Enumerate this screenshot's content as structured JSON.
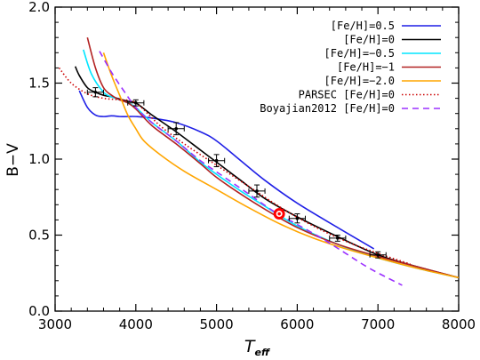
{
  "chart_data": {
    "type": "line",
    "xlabel": {
      "main": "T",
      "sub": "eff"
    },
    "ylabel": "B−V",
    "xlim": [
      3000,
      8000
    ],
    "ylim": [
      0.0,
      2.0
    ],
    "x_ticks": [
      "3000",
      "4000",
      "5000",
      "6000",
      "7000",
      "8000"
    ],
    "y_ticks": [
      "0.0",
      "0.5",
      "1.0",
      "1.5",
      "2.0"
    ],
    "legend_position": "top-right",
    "series": [
      {
        "name": "[Fe/H]=0.5",
        "color": "#1f1fe6",
        "dash": "solid",
        "x": [
          3300,
          3400,
          3500,
          3600,
          3700,
          3800,
          3900,
          4000,
          4200,
          4500,
          4800,
          5000,
          5300,
          5600,
          6000,
          6500,
          6950
        ],
        "y": [
          1.45,
          1.34,
          1.29,
          1.28,
          1.285,
          1.28,
          1.28,
          1.28,
          1.27,
          1.24,
          1.18,
          1.12,
          0.99,
          0.86,
          0.71,
          0.55,
          0.41
        ]
      },
      {
        "name": "[Fe/H]=0",
        "color": "#000000",
        "dash": "solid",
        "x": [
          3250,
          3300,
          3400,
          3500,
          3600,
          3700,
          3800,
          3900,
          4000,
          4200,
          4500,
          4800,
          5000,
          5300,
          5600,
          6000,
          6500,
          7000,
          7500,
          8000
        ],
        "y": [
          1.61,
          1.55,
          1.47,
          1.44,
          1.42,
          1.41,
          1.395,
          1.38,
          1.37,
          1.29,
          1.18,
          1.06,
          0.98,
          0.86,
          0.74,
          0.62,
          0.49,
          0.37,
          0.29,
          0.22
        ]
      },
      {
        "name": "[Fe/H]=−0.5",
        "color": "#00e5ff",
        "dash": "solid",
        "x": [
          3350,
          3450,
          3600,
          3700,
          3800,
          3900,
          4000,
          4200,
          4500,
          4800,
          5000,
          5300,
          5600,
          6000,
          6500,
          7000,
          7500,
          8000
        ],
        "y": [
          1.72,
          1.56,
          1.44,
          1.41,
          1.39,
          1.37,
          1.34,
          1.24,
          1.12,
          0.98,
          0.9,
          0.79,
          0.69,
          0.56,
          0.44,
          0.35,
          0.28,
          0.22
        ]
      },
      {
        "name": "[Fe/H]=−1",
        "color": "#b22222",
        "dash": "solid",
        "x": [
          3400,
          3500,
          3600,
          3700,
          3800,
          3900,
          4000,
          4200,
          4500,
          4800,
          5000,
          5300,
          5600,
          6000,
          6500,
          7000,
          7500,
          8000
        ],
        "y": [
          1.8,
          1.6,
          1.47,
          1.42,
          1.39,
          1.37,
          1.33,
          1.22,
          1.1,
          0.97,
          0.88,
          0.77,
          0.67,
          0.55,
          0.44,
          0.36,
          0.29,
          0.22
        ]
      },
      {
        "name": "[Fe/H]=−2.0",
        "color": "#ffa500",
        "dash": "solid",
        "x": [
          3600,
          3700,
          3800,
          3900,
          4000,
          4100,
          4300,
          4600,
          5000,
          5400,
          5800,
          6200,
          6600,
          7000,
          7500,
          8000
        ],
        "y": [
          1.7,
          1.55,
          1.42,
          1.29,
          1.2,
          1.12,
          1.03,
          0.92,
          0.8,
          0.68,
          0.57,
          0.48,
          0.41,
          0.35,
          0.28,
          0.22
        ]
      },
      {
        "name": "PARSEC [Fe/H]=0",
        "color": "#cc0000",
        "dash": "dotted",
        "x": [
          3050,
          3200,
          3400,
          3600,
          3800,
          4000,
          4300,
          4600,
          5000,
          5400,
          5800,
          6200,
          6600,
          7000,
          7400
        ],
        "y": [
          1.6,
          1.5,
          1.43,
          1.4,
          1.39,
          1.37,
          1.22,
          1.1,
          0.96,
          0.82,
          0.68,
          0.56,
          0.46,
          0.38,
          0.31
        ]
      },
      {
        "name": "Boyajian2012 [Fe/H]=0",
        "color": "#9b30ff",
        "dash": "dashed",
        "x": [
          3550,
          3700,
          3850,
          4000,
          4200,
          4500,
          4800,
          5100,
          5400,
          5700,
          6000,
          6300,
          6600,
          6900,
          7300
        ],
        "y": [
          1.71,
          1.57,
          1.45,
          1.34,
          1.24,
          1.12,
          0.99,
          0.88,
          0.77,
          0.66,
          0.57,
          0.48,
          0.38,
          0.28,
          0.17
        ]
      }
    ],
    "error_points": {
      "color": "#000000",
      "points": [
        {
          "x": 3500,
          "y": 1.44,
          "xerr": 100,
          "yerr": 0.03
        },
        {
          "x": 4000,
          "y": 1.37,
          "xerr": 100,
          "yerr": 0.02
        },
        {
          "x": 4500,
          "y": 1.2,
          "xerr": 100,
          "yerr": 0.04
        },
        {
          "x": 5000,
          "y": 0.99,
          "xerr": 100,
          "yerr": 0.04
        },
        {
          "x": 5500,
          "y": 0.79,
          "xerr": 100,
          "yerr": 0.04
        },
        {
          "x": 6000,
          "y": 0.61,
          "xerr": 100,
          "yerr": 0.03
        },
        {
          "x": 6500,
          "y": 0.48,
          "xerr": 100,
          "yerr": 0.02
        },
        {
          "x": 7000,
          "y": 0.37,
          "xerr": 100,
          "yerr": 0.02
        }
      ]
    },
    "sun_marker": {
      "x": 5777,
      "y": 0.64,
      "color": "#ff0000"
    }
  }
}
